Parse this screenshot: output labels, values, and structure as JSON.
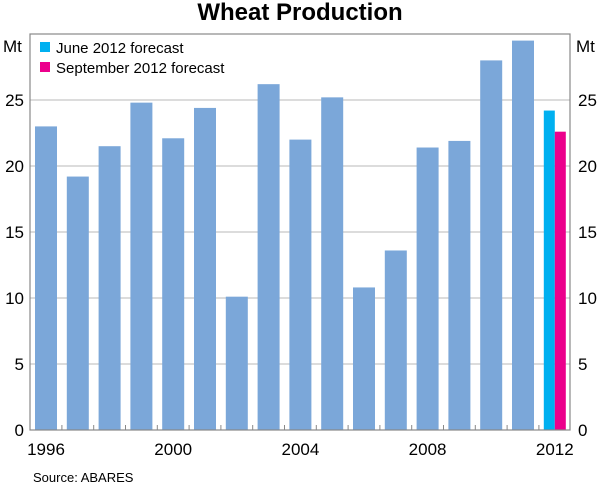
{
  "chart_data": {
    "type": "bar",
    "title": "Wheat Production",
    "ylabel_left": "Mt",
    "ylabel_right": "Mt",
    "source": "Source: ABARES",
    "ylim": [
      0,
      30
    ],
    "yticks": [
      0,
      5,
      10,
      15,
      20,
      25
    ],
    "xtick_labels": [
      "1996",
      "2000",
      "2004",
      "2008",
      "2012"
    ],
    "grid": true,
    "legend_placement": "top-left",
    "categories": [
      "1996",
      "1997",
      "1998",
      "1999",
      "2000",
      "2001",
      "2002",
      "2003",
      "2004",
      "2005",
      "2006",
      "2007",
      "2008",
      "2009",
      "2010",
      "2011"
    ],
    "values": [
      23.0,
      19.2,
      21.5,
      24.8,
      22.1,
      24.4,
      10.1,
      26.2,
      22.0,
      25.2,
      10.8,
      13.6,
      21.4,
      21.9,
      28.0,
      29.5
    ],
    "bar_color": "#7ba7d9",
    "forecasts": [
      {
        "name": "June 2012 forecast",
        "category": "2012",
        "value": 24.2,
        "color": "#00b0f0"
      },
      {
        "name": "September 2012 forecast",
        "category": "2012",
        "value": 22.6,
        "color": "#ec008c"
      }
    ]
  }
}
